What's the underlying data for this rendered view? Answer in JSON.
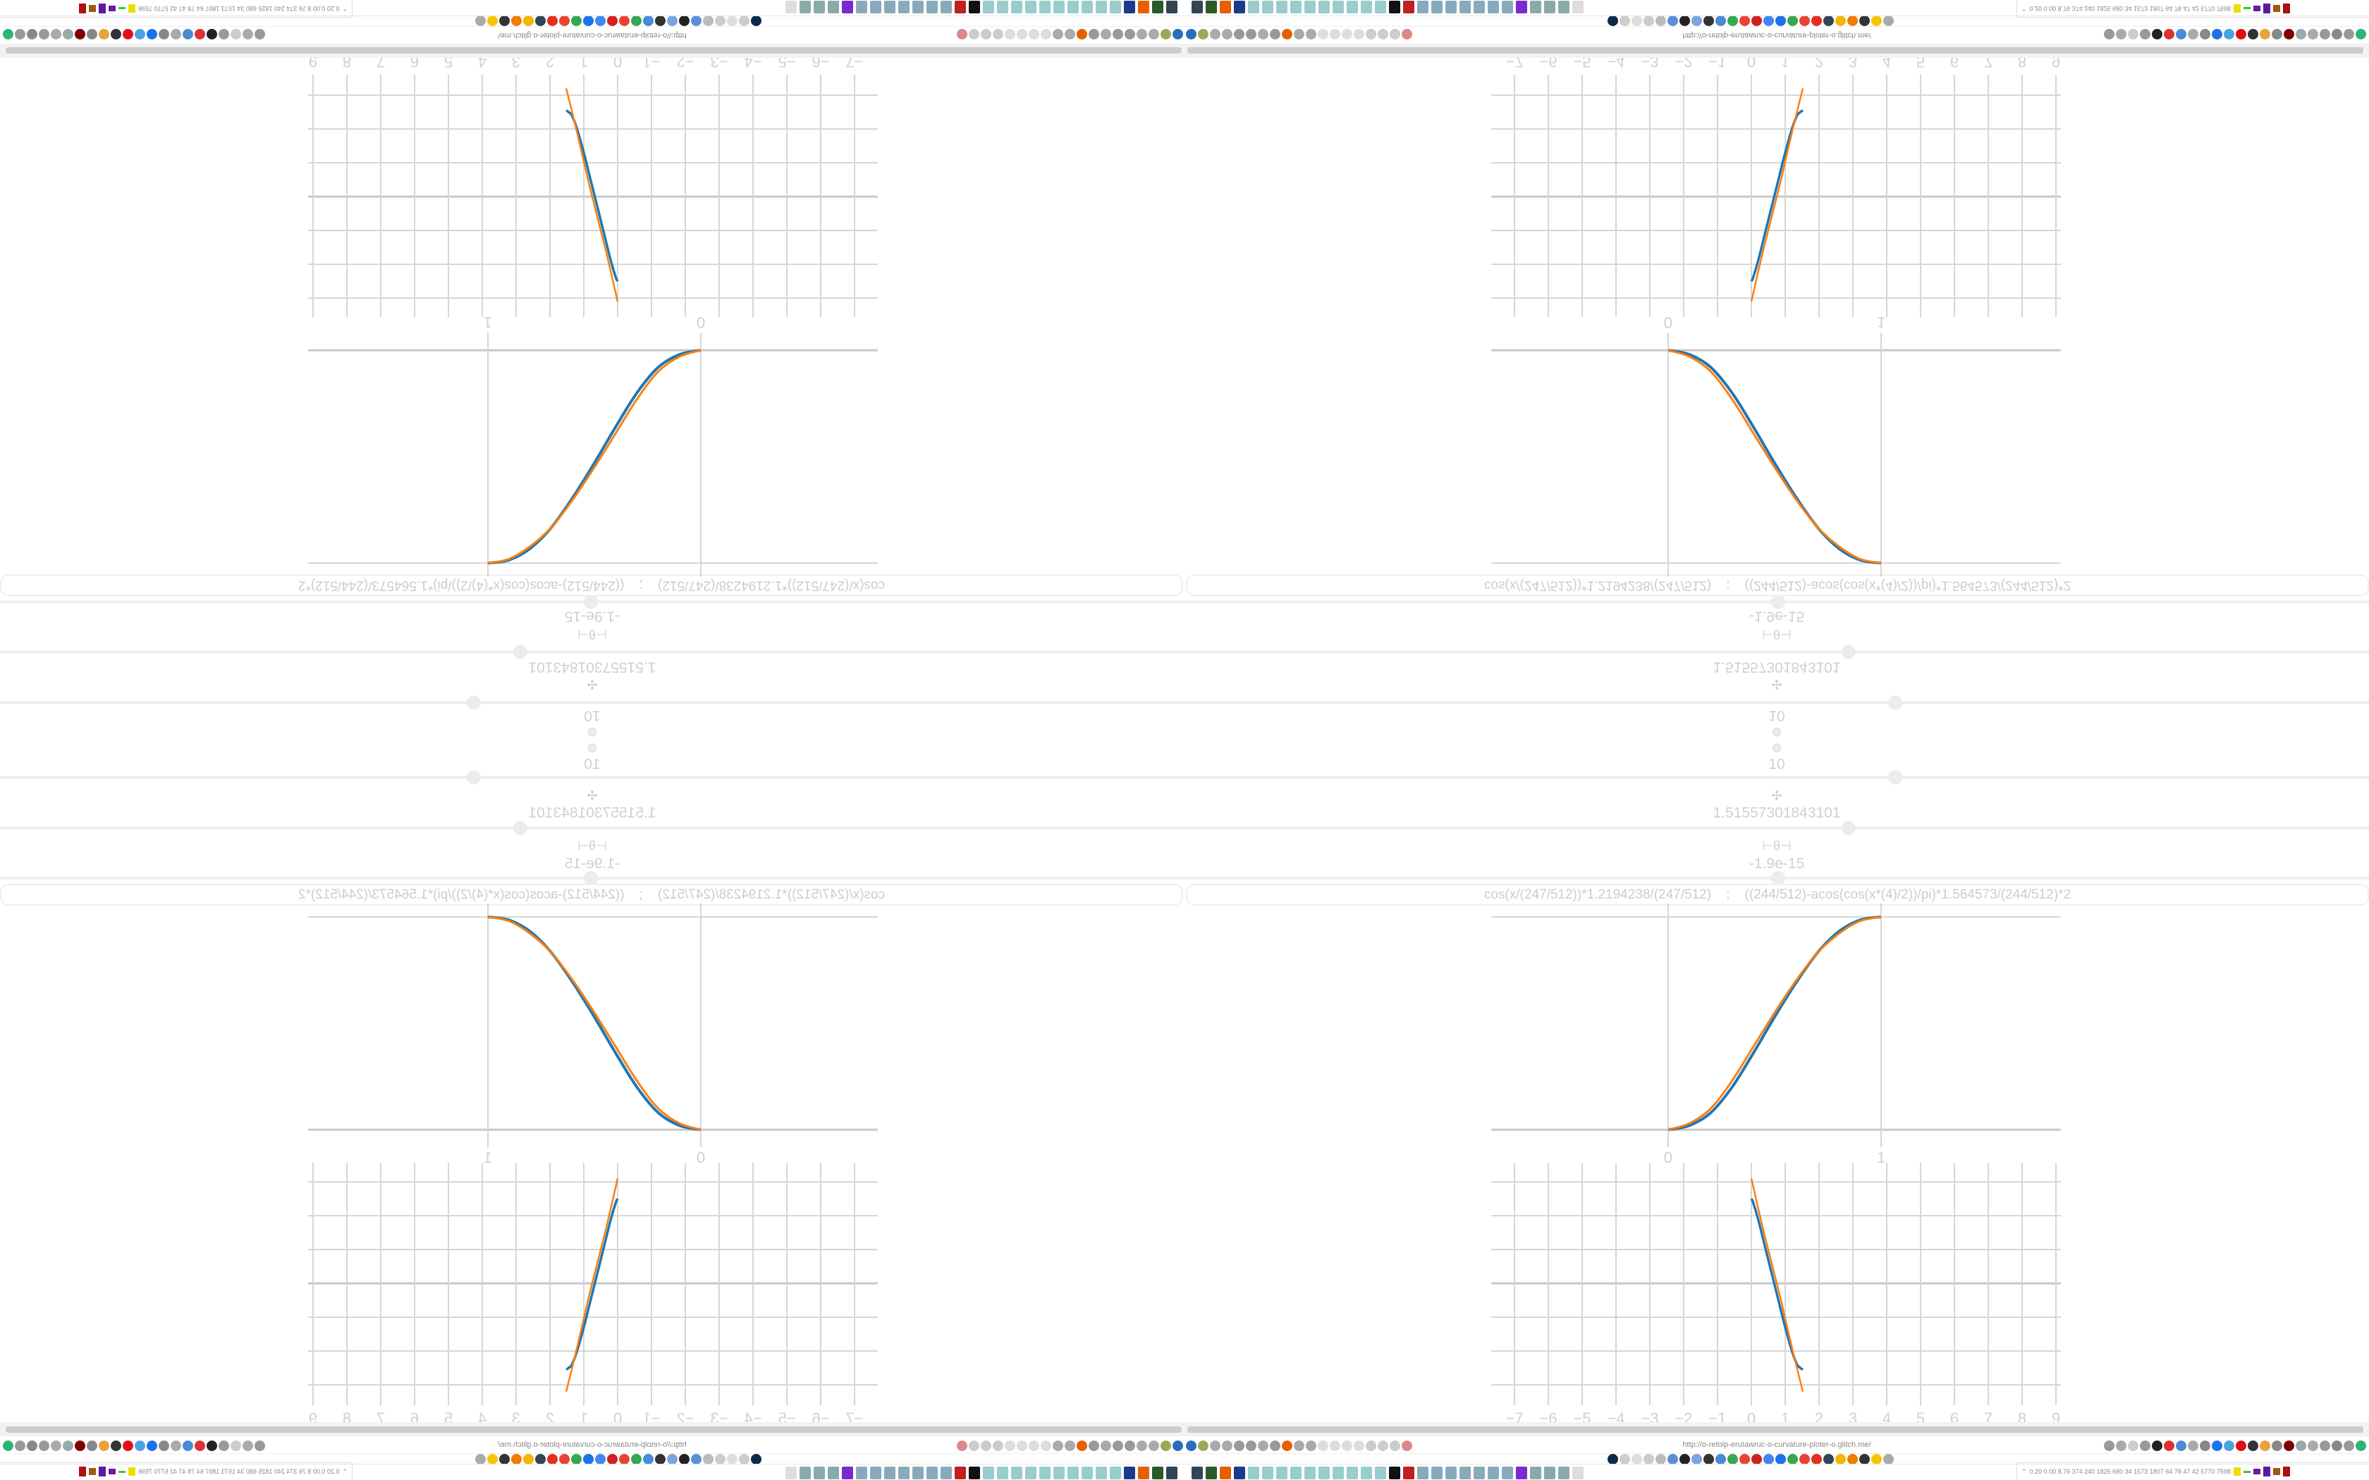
{
  "controls": {
    "scale_value": "10",
    "scale_icon": "target-icon",
    "amplitude_value": "1.51557301843101",
    "amplitude_icon": "move-icon",
    "offset_value": "-1.9e-15",
    "offset_icon": "theta-icon",
    "sliders": [
      0.6,
      0.56,
      0.5
    ]
  },
  "formula": {
    "value": "cos(x/(247/512))*1.2194238/(247/512)    ;    ((244/512)-acos(cos(x*(4)/2))/pi)*1.564573/(244/512)*2"
  },
  "colors": {
    "series1": "#1f77b4",
    "series2": "#ff7f0e",
    "grid": "#d6d6d6",
    "text": "#cfcfcf"
  },
  "chart_data": [
    {
      "type": "line",
      "x_ticks": [
        "0",
        "1"
      ],
      "xlim": [
        0,
        1
      ],
      "ylim": [
        0,
        1
      ],
      "grid": true,
      "series": [
        {
          "color": "#1f77b4",
          "x": [
            0,
            0.1,
            0.2,
            0.3,
            0.4,
            0.5,
            0.6,
            0.7,
            0.8,
            0.9,
            1
          ],
          "y": [
            0,
            0.02,
            0.08,
            0.2,
            0.36,
            0.53,
            0.69,
            0.83,
            0.93,
            0.985,
            1
          ]
        },
        {
          "color": "#ff7f0e",
          "x": [
            0,
            0.1,
            0.2,
            0.3,
            0.4,
            0.5,
            0.6,
            0.7,
            0.8,
            0.9,
            1
          ],
          "y": [
            0,
            0.03,
            0.1,
            0.23,
            0.39,
            0.55,
            0.7,
            0.83,
            0.92,
            0.98,
            1
          ]
        }
      ]
    },
    {
      "type": "line",
      "x_ticks": [
        "−7",
        "−6",
        "−5",
        "−4",
        "−3",
        "−2",
        "−1",
        "0",
        "1",
        "2",
        "3",
        "4",
        "5",
        "6",
        "7",
        "8",
        "9"
      ],
      "xlim": [
        -7.7,
        9.2
      ],
      "ylim": [
        -3.6,
        3.6
      ],
      "grid": true,
      "series": [
        {
          "color": "#1f77b4",
          "x": [
            0,
            0.05,
            0.2,
            0.4,
            0.6,
            0.8,
            1.0,
            1.2,
            1.35,
            1.45,
            1.52
          ],
          "y": [
            2.5,
            2.4,
            1.9,
            1.1,
            0.3,
            -0.5,
            -1.3,
            -2.0,
            -2.4,
            -2.5,
            -2.55
          ]
        },
        {
          "color": "#ff7f0e",
          "x": [
            0,
            0.3,
            0.6,
            0.9,
            1.2,
            1.52
          ],
          "y": [
            3.1,
            1.8,
            0.6,
            -0.6,
            -1.9,
            -3.2
          ]
        }
      ]
    }
  ],
  "browser": {
    "url": "http://o-retolp-erutawruc-o-curvature-ploter-o.glitch.me/",
    "left_icons": [
      [
        "menu-icon",
        "#2a6ebb"
      ],
      [
        "extension-icon",
        "#9aa85a"
      ],
      [
        "globe-icon",
        "#aaa"
      ],
      [
        "globe-icon",
        "#aaa"
      ],
      [
        "undo-icon",
        "#999"
      ],
      [
        "redo-icon",
        "#999"
      ],
      [
        "globe-icon",
        "#aaa"
      ],
      [
        "wrench-icon",
        "#999"
      ],
      [
        "firefox-icon",
        "#e66000"
      ],
      [
        "gear-icon",
        "#aaa"
      ],
      [
        "globe-icon",
        "#aaa"
      ],
      [
        "dot-icon",
        "#ddd"
      ],
      [
        "dot-icon",
        "#ddd"
      ],
      [
        "dot-icon",
        "#ddd"
      ],
      [
        "dot-icon",
        "#ddd"
      ],
      [
        "folder-icon",
        "#ccc"
      ],
      [
        "back-icon",
        "#ccc"
      ],
      [
        "shield-icon",
        "#ccc"
      ],
      [
        "no-script-icon",
        "#d88"
      ]
    ],
    "right_icons": [
      [
        "translate-icon",
        "#999"
      ],
      [
        "star-icon",
        "#aaa"
      ],
      [
        "forward-icon",
        "#ccc"
      ],
      [
        "reload-icon",
        "#999"
      ],
      [
        "download-icon",
        "#222"
      ],
      [
        "color-picker-icon",
        "#d33"
      ],
      [
        "translate-icon",
        "#4a8bd6"
      ],
      [
        "mouse-icon",
        "#aaa"
      ],
      [
        "gear-icon",
        "#888"
      ],
      [
        "add-icon",
        "#1a73e8"
      ],
      [
        "update-icon",
        "#4aa3df"
      ],
      [
        "record-icon",
        "#e0101a"
      ],
      [
        "trash-icon",
        "#333"
      ],
      [
        "share-icon",
        "#e9a23b"
      ],
      [
        "archive-icon",
        "#888"
      ],
      [
        "ublock-icon",
        "#800000"
      ],
      [
        "privacy-icon",
        "#9aa"
      ],
      [
        "globe-icon",
        "#aaa"
      ],
      [
        "puzzle-icon",
        "#999"
      ],
      [
        "wrench-icon",
        "#888"
      ],
      [
        "settings-icon",
        "#999"
      ],
      [
        "status-dot-icon",
        "#2bb673"
      ]
    ],
    "bookmarks": [
      [
        "bookmark-icon",
        "#0a2a4a"
      ],
      [
        "bookmark-icon",
        "#ccc"
      ],
      [
        "bookmark-icon",
        "#ddd"
      ],
      [
        "bookmark-icon",
        "#ccc"
      ],
      [
        "bookmark-icon",
        "#bbb"
      ],
      [
        "bookmark-icon",
        "#5a8fd6"
      ],
      [
        "bookmark-icon",
        "#222"
      ],
      [
        "bookmark-icon",
        "#7aa5e0"
      ],
      [
        "bookmark-icon",
        "#333"
      ],
      [
        "bookmark-icon",
        "#4a8bd6"
      ],
      [
        "bookmark-icon",
        "#34a853"
      ],
      [
        "bookmark-icon",
        "#ea4335"
      ],
      [
        "bookmark-icon",
        "#d02020"
      ],
      [
        "bookmark-icon",
        "#4285f4"
      ],
      [
        "bookmark-icon",
        "#1a73e8"
      ],
      [
        "bookmark-icon",
        "#34a853"
      ],
      [
        "bookmark-icon",
        "#ea4335"
      ],
      [
        "bookmark-icon",
        "#e0301e"
      ],
      [
        "bookmark-icon",
        "#345"
      ],
      [
        "bookmark-icon",
        "#f5b400"
      ],
      [
        "bookmark-icon",
        "#f07c00"
      ],
      [
        "bookmark-icon",
        "#333"
      ],
      [
        "bookmark-icon",
        "#f5c400"
      ],
      [
        "bookmark-icon",
        "#aaa"
      ]
    ]
  },
  "taskbar": {
    "apps": [
      [
        "monitor-app-icon",
        "#345"
      ],
      [
        "terminal-app-icon",
        "#2a5a2a"
      ],
      [
        "firefox-app-icon",
        "#e66000"
      ],
      [
        "save-app-icon",
        "#1a3a8a"
      ],
      [
        "notepad-app-icon",
        "#9cc"
      ],
      [
        "notepad-app-icon",
        "#9cc"
      ],
      [
        "notepad-app-icon",
        "#9cc"
      ],
      [
        "notepad-app-icon",
        "#9cc"
      ],
      [
        "notepad-app-icon",
        "#9cc"
      ],
      [
        "notepad-app-icon",
        "#9cc"
      ],
      [
        "notepad-app-icon",
        "#9cc"
      ],
      [
        "notepad-app-icon",
        "#9cc"
      ],
      [
        "notepad-app-icon",
        "#9cc"
      ],
      [
        "notepad-app-icon",
        "#9cc"
      ],
      [
        "inkscape-app-icon",
        "#111"
      ],
      [
        "settings-app-icon",
        "#c02020"
      ],
      [
        "calc-app-icon",
        "#8ab"
      ],
      [
        "calc-app-icon",
        "#8ab"
      ],
      [
        "calc-app-icon",
        "#8ab"
      ],
      [
        "calc-app-icon",
        "#8ab"
      ],
      [
        "calc-app-icon",
        "#8ab"
      ],
      [
        "calc-app-icon",
        "#8ab"
      ],
      [
        "calc-app-icon",
        "#8ab"
      ],
      [
        "media-app-icon",
        "#7a2ad0"
      ],
      [
        "files-app-icon",
        "#8aa"
      ],
      [
        "files-app-icon",
        "#8aa"
      ],
      [
        "files-app-icon",
        "#8aa"
      ],
      [
        "blank-app-icon",
        "#ddd"
      ]
    ],
    "stats": "0.20 0.00 8.76 374 240 1825 680 34 1573 1807 64 78 47 42 5770 7598"
  }
}
